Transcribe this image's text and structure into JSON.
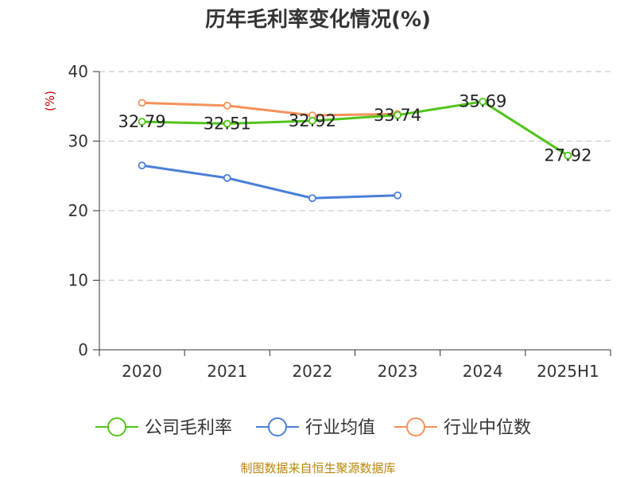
{
  "chart_data": {
    "type": "line",
    "title": "历年毛利率变化情况(%)",
    "ylabel": "(%)",
    "xlabel": "",
    "categories": [
      "2020",
      "2021",
      "2022",
      "2023",
      "2024",
      "2025H1"
    ],
    "ylim": [
      0,
      40
    ],
    "yticks": [
      0,
      10,
      20,
      30,
      40
    ],
    "grid": true,
    "legend_position": "bottom",
    "series": [
      {
        "name": "公司毛利率",
        "color": "#52c41a",
        "show_labels": true,
        "values": [
          32.79,
          32.51,
          32.92,
          33.74,
          35.69,
          27.92
        ]
      },
      {
        "name": "行业均值",
        "color": "#4a7fd9",
        "show_labels": false,
        "values": [
          26.5,
          24.7,
          21.8,
          22.2,
          null,
          null
        ]
      },
      {
        "name": "行业中位数",
        "color": "#f5915a",
        "show_labels": false,
        "values": [
          35.5,
          35.1,
          33.7,
          33.9,
          null,
          null
        ]
      }
    ]
  },
  "source": "制图数据来自恒生聚源数据库"
}
